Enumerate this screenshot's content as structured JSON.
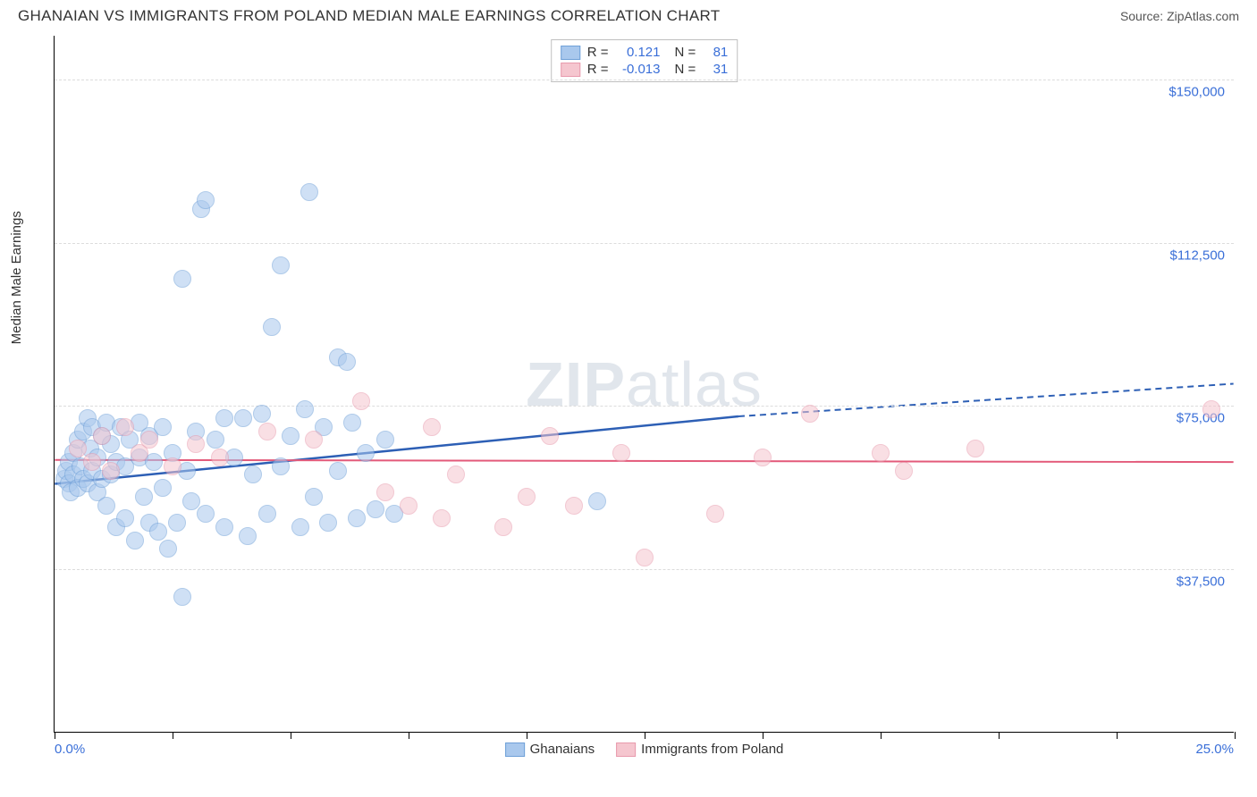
{
  "title": "GHANAIAN VS IMMIGRANTS FROM POLAND MEDIAN MALE EARNINGS CORRELATION CHART",
  "source": "Source: ZipAtlas.com",
  "watermark": "ZIPatlas",
  "ylabel": "Median Male Earnings",
  "chart": {
    "type": "scatter",
    "xlim": [
      0,
      25
    ],
    "ylim": [
      0,
      160000
    ],
    "x_tick_positions": [
      0,
      2.5,
      5,
      7.5,
      10,
      12.5,
      15,
      17.5,
      20,
      22.5,
      25
    ],
    "x_min_label": "0.0%",
    "x_max_label": "25.0%",
    "y_gridlines": [
      {
        "value": 37500,
        "label": "$37,500"
      },
      {
        "value": 75000,
        "label": "$75,000"
      },
      {
        "value": 112500,
        "label": "$112,500"
      },
      {
        "value": 150000,
        "label": "$150,000"
      }
    ],
    "background_color": "#ffffff",
    "grid_color": "#dcdcdc",
    "tick_label_color": "#3a6fd8",
    "marker_radius": 10,
    "marker_opacity": 0.55,
    "series": [
      {
        "name": "Ghanaians",
        "color_fill": "#a9c8ed",
        "color_stroke": "#6fa0d8",
        "trend": {
          "y_at_xmin": 57000,
          "y_at_solid_end": 72500,
          "solid_end_x": 14.5,
          "y_at_xmax": 80000,
          "color": "#2d5fb5",
          "width": 2.5
        },
        "stats": {
          "R": "0.121",
          "N": "81"
        },
        "points": [
          [
            0.2,
            58000
          ],
          [
            0.25,
            60000
          ],
          [
            0.3,
            57000
          ],
          [
            0.3,
            62000
          ],
          [
            0.35,
            55000
          ],
          [
            0.4,
            64000
          ],
          [
            0.4,
            59000
          ],
          [
            0.5,
            67000
          ],
          [
            0.5,
            56000
          ],
          [
            0.55,
            61000
          ],
          [
            0.6,
            69000
          ],
          [
            0.6,
            58000
          ],
          [
            0.7,
            72000
          ],
          [
            0.7,
            57000
          ],
          [
            0.75,
            65000
          ],
          [
            0.8,
            70000
          ],
          [
            0.8,
            60000
          ],
          [
            0.9,
            55000
          ],
          [
            0.9,
            63000
          ],
          [
            1.0,
            68000
          ],
          [
            1.0,
            58000
          ],
          [
            1.1,
            71000
          ],
          [
            1.1,
            52000
          ],
          [
            1.2,
            66000
          ],
          [
            1.2,
            59000
          ],
          [
            1.3,
            47000
          ],
          [
            1.3,
            62000
          ],
          [
            1.4,
            70000
          ],
          [
            1.5,
            49000
          ],
          [
            1.5,
            61000
          ],
          [
            1.6,
            67000
          ],
          [
            1.7,
            44000
          ],
          [
            1.8,
            63000
          ],
          [
            1.8,
            71000
          ],
          [
            1.9,
            54000
          ],
          [
            2.0,
            48000
          ],
          [
            2.0,
            68000
          ],
          [
            2.1,
            62000
          ],
          [
            2.2,
            46000
          ],
          [
            2.3,
            70000
          ],
          [
            2.4,
            42000
          ],
          [
            2.5,
            64000
          ],
          [
            2.6,
            48000
          ],
          [
            2.7,
            104000
          ],
          [
            2.8,
            60000
          ],
          [
            2.9,
            53000
          ],
          [
            3.0,
            69000
          ],
          [
            3.1,
            120000
          ],
          [
            3.2,
            122000
          ],
          [
            3.2,
            50000
          ],
          [
            3.4,
            67000
          ],
          [
            3.6,
            72000
          ],
          [
            3.6,
            47000
          ],
          [
            3.8,
            63000
          ],
          [
            4.0,
            72000
          ],
          [
            4.1,
            45000
          ],
          [
            4.2,
            59000
          ],
          [
            4.4,
            73000
          ],
          [
            4.5,
            50000
          ],
          [
            4.6,
            93000
          ],
          [
            4.8,
            107000
          ],
          [
            4.8,
            61000
          ],
          [
            5.0,
            68000
          ],
          [
            5.2,
            47000
          ],
          [
            5.3,
            74000
          ],
          [
            5.4,
            124000
          ],
          [
            5.5,
            54000
          ],
          [
            5.7,
            70000
          ],
          [
            5.8,
            48000
          ],
          [
            6.0,
            86000
          ],
          [
            6.0,
            60000
          ],
          [
            6.2,
            85000
          ],
          [
            6.3,
            71000
          ],
          [
            6.4,
            49000
          ],
          [
            6.6,
            64000
          ],
          [
            6.8,
            51000
          ],
          [
            7.0,
            67000
          ],
          [
            7.2,
            50000
          ],
          [
            11.5,
            53000
          ],
          [
            2.7,
            31000
          ],
          [
            2.3,
            56000
          ]
        ]
      },
      {
        "name": "Immigrants from Poland",
        "color_fill": "#f5c6cf",
        "color_stroke": "#e89aad",
        "trend": {
          "y_at_xmin": 62500,
          "y_at_solid_end": 62000,
          "solid_end_x": 25,
          "y_at_xmax": 62000,
          "color": "#e35a7a",
          "width": 2
        },
        "stats": {
          "R": "-0.013",
          "N": "31"
        },
        "points": [
          [
            0.5,
            65000
          ],
          [
            0.8,
            62000
          ],
          [
            1.0,
            68000
          ],
          [
            1.2,
            60000
          ],
          [
            1.5,
            70000
          ],
          [
            1.8,
            64000
          ],
          [
            2.0,
            67000
          ],
          [
            2.5,
            61000
          ],
          [
            3.0,
            66000
          ],
          [
            3.5,
            63000
          ],
          [
            4.5,
            69000
          ],
          [
            5.5,
            67000
          ],
          [
            6.5,
            76000
          ],
          [
            7.0,
            55000
          ],
          [
            7.5,
            52000
          ],
          [
            8.0,
            70000
          ],
          [
            8.2,
            49000
          ],
          [
            8.5,
            59000
          ],
          [
            9.5,
            47000
          ],
          [
            10.0,
            54000
          ],
          [
            10.5,
            68000
          ],
          [
            11.0,
            52000
          ],
          [
            12.5,
            40000
          ],
          [
            14.0,
            50000
          ],
          [
            15.0,
            63000
          ],
          [
            16.0,
            73000
          ],
          [
            17.5,
            64000
          ],
          [
            18.0,
            60000
          ],
          [
            19.5,
            65000
          ],
          [
            24.5,
            74000
          ],
          [
            12.0,
            64000
          ]
        ]
      }
    ]
  },
  "legend_labels": {
    "R_prefix": "R =",
    "N_prefix": "N ="
  }
}
